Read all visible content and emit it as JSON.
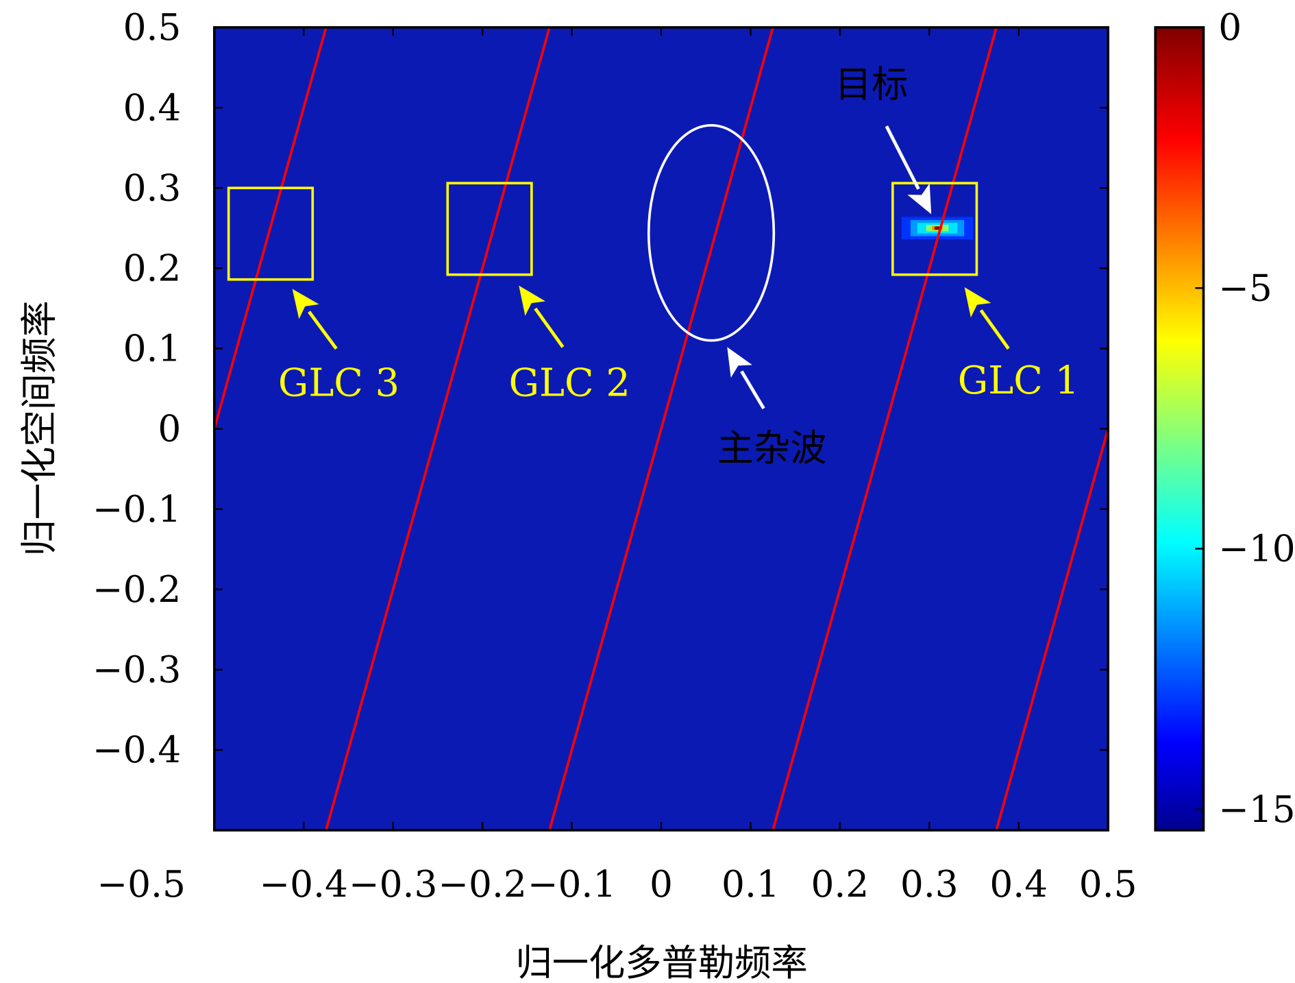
{
  "chart_data": {
    "type": "heatmap",
    "xlabel": "归一化多普勒频率",
    "ylabel": "归一化空间频率",
    "xlim": [
      -0.5,
      0.5
    ],
    "ylim": [
      -0.5,
      0.5
    ],
    "xticks": [
      "-0.5",
      "-0.4",
      "-0.3",
      "-0.2",
      "-0.1",
      "0",
      "0.1",
      "0.2",
      "0.3",
      "0.4",
      "0.5"
    ],
    "yticks": [
      "0.5",
      "0.4",
      "0.3",
      "0.2",
      "0.1",
      "0",
      "-0.1",
      "-0.2",
      "-0.3",
      "-0.4"
    ],
    "colorbar": {
      "clim": [
        -15.4,
        0
      ],
      "ticks": [
        "0",
        "-5",
        "-10",
        "-15"
      ],
      "colormap": "jet"
    },
    "background_level": -15,
    "clutter_ridges": {
      "slope_fd_per_fs": 0.25,
      "offsets": [
        -0.5,
        -0.25,
        0,
        0.25,
        0.5
      ],
      "color": "#ff0000"
    },
    "target": {
      "fd": 0.309,
      "fs": 0.25,
      "peak_db": 0
    },
    "boxes": [
      {
        "label": "GLC 3",
        "x": [
          -0.484,
          -0.39
        ],
        "y": [
          0.186,
          0.3
        ]
      },
      {
        "label": "GLC 2",
        "x": [
          -0.239,
          -0.145
        ],
        "y": [
          0.192,
          0.306
        ]
      },
      {
        "label": "GLC 1",
        "x": [
          0.259,
          0.353
        ],
        "y": [
          0.192,
          0.306
        ]
      }
    ],
    "main_clutter_ellipse": {
      "label": "主杂波",
      "cx": 0.056,
      "cy": 0.244,
      "rx": 0.07,
      "ry": 0.134
    },
    "target_label": "目标",
    "colors": {
      "annotation_yellow": "#ffff00",
      "annotation_white": "#ffffff",
      "background": "#0c1ab4"
    }
  }
}
